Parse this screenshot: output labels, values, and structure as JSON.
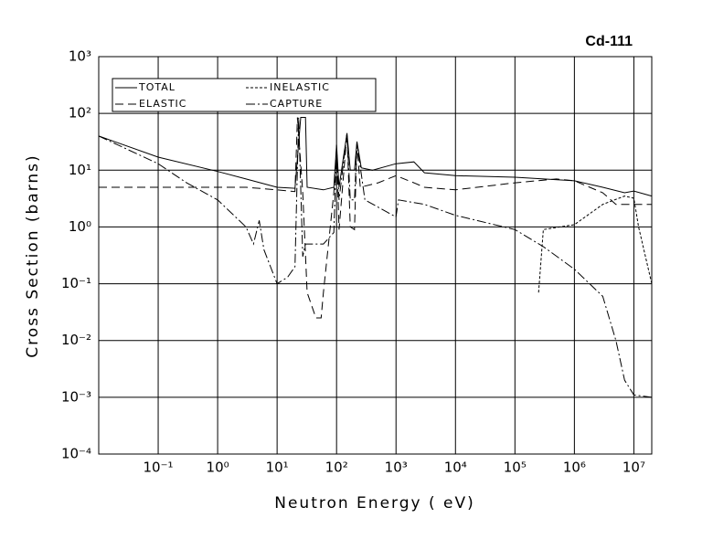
{
  "chart_data": {
    "type": "line",
    "title": "Cd-111",
    "x_label": "Neutron Energy ( eV)",
    "y_label": "Cross Section (barns)",
    "log_x": true,
    "log_y": true,
    "grid": true,
    "xlim": [
      0.01,
      20000000
    ],
    "ylim": [
      0.0001,
      1000
    ],
    "xticks": [
      {
        "value": 0.1,
        "label": "10⁻¹"
      },
      {
        "value": 1,
        "label": "10⁰"
      },
      {
        "value": 10,
        "label": "10¹"
      },
      {
        "value": 100,
        "label": "10²"
      },
      {
        "value": 1000,
        "label": "10³"
      },
      {
        "value": 10000,
        "label": "10⁴"
      },
      {
        "value": 100000,
        "label": "10⁵"
      },
      {
        "value": 1000000,
        "label": "10⁶"
      },
      {
        "value": 10000000,
        "label": "10⁷"
      }
    ],
    "yticks": [
      {
        "value": 0.0001,
        "label": "10⁻⁴"
      },
      {
        "value": 0.001,
        "label": "10⁻³"
      },
      {
        "value": 0.01,
        "label": "10⁻²"
      },
      {
        "value": 0.1,
        "label": "10⁻¹"
      },
      {
        "value": 1,
        "label": "10⁰"
      },
      {
        "value": 10,
        "label": "10¹"
      },
      {
        "value": 100,
        "label": "10²"
      },
      {
        "value": 1000,
        "label": "10³"
      }
    ],
    "series": [
      {
        "name": "TOTAL",
        "color": "#000000",
        "dash": "solid",
        "x": [
          0.01,
          0.1,
          1,
          3,
          10,
          20,
          25,
          30,
          32,
          60,
          90,
          100,
          110,
          150,
          170,
          200,
          220,
          260,
          400,
          1000,
          2000,
          3000,
          10000,
          100000,
          1000000,
          3000000,
          7000000,
          10000000,
          20000000
        ],
        "values": [
          40,
          17,
          9.5,
          7,
          5,
          4.8,
          85,
          85,
          5,
          4.5,
          5,
          28,
          5,
          45,
          10,
          10,
          32,
          11,
          10,
          13,
          14,
          9,
          8,
          7.5,
          6.5,
          5,
          4,
          4.3,
          3.5
        ]
      },
      {
        "name": "ELASTIC",
        "color": "#000000",
        "dash": "long",
        "x": [
          0.01,
          3,
          10,
          20,
          22,
          27,
          32,
          45,
          55,
          60,
          90,
          100,
          110,
          150,
          170,
          200,
          220,
          250,
          500,
          1000,
          2000,
          3000,
          10000,
          100000,
          500000,
          1000000,
          3000000,
          5000000,
          10000000,
          20000000
        ],
        "values": [
          5,
          5,
          4.5,
          4.2,
          85,
          4,
          0.07,
          0.025,
          0.025,
          0.07,
          4,
          25,
          0.9,
          45,
          1,
          0.9,
          30,
          5,
          6,
          8,
          6,
          5,
          4.5,
          6,
          7,
          6.5,
          4,
          2.5,
          2.5,
          2.5
        ]
      },
      {
        "name": "INELASTIC",
        "color": "#000000",
        "dash": "short",
        "x": [
          250000,
          300000,
          1000000,
          3000000,
          7000000,
          10000000,
          12000000,
          20000000
        ],
        "values": [
          0.07,
          0.9,
          1.1,
          2.5,
          3.5,
          3.2,
          1,
          0.1
        ]
      },
      {
        "name": "CAPTURE",
        "color": "#000000",
        "dash": "dashdot",
        "x": [
          0.01,
          0.1,
          0.3,
          1,
          3,
          4,
          5,
          6,
          10,
          15,
          20,
          23,
          27,
          30,
          60,
          90,
          100,
          110,
          150,
          170,
          200,
          220,
          300,
          1000,
          1100,
          3000,
          10000,
          100000,
          300000,
          1000000,
          3000000,
          5000000,
          7000000,
          10000000,
          20000000
        ],
        "values": [
          40,
          13,
          6,
          3,
          1,
          0.5,
          1.3,
          0.4,
          0.1,
          0.13,
          0.2,
          85,
          0.3,
          0.5,
          0.5,
          0.8,
          25,
          3,
          45,
          3,
          3,
          30,
          3,
          1.5,
          3,
          2.5,
          1.6,
          0.9,
          0.45,
          0.18,
          0.06,
          0.01,
          0.002,
          0.0011,
          0.001
        ]
      }
    ]
  }
}
